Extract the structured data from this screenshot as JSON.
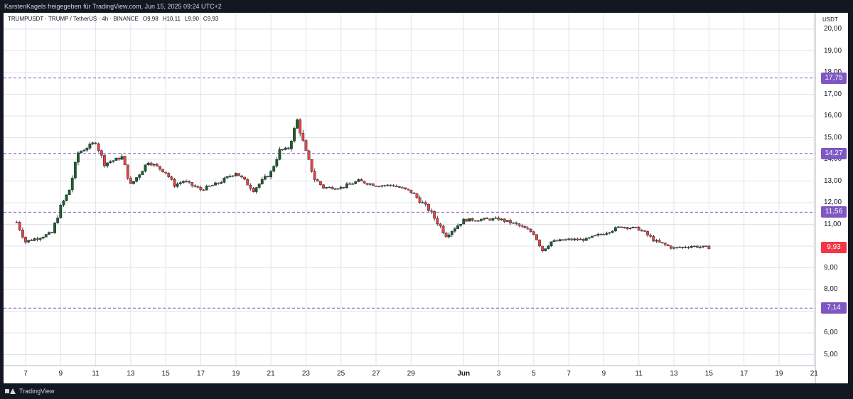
{
  "header": {
    "attribution": "KarstenKagels freigegeben für TradingView.com, Jun 15, 2025 09:24 UTC+2"
  },
  "legend": {
    "symbol": "TRUMPUSDT · TRUMP / TetherUS · 4h · BINANCE",
    "open": "O9,98",
    "high": "H10,11",
    "low": "L9,90",
    "close": "C9,93"
  },
  "axis": {
    "currency": "USDT",
    "y_labels": [
      "20,00",
      "19,00",
      "18,00",
      "17,00",
      "16,00",
      "15,00",
      "14,00",
      "13,00",
      "12,00",
      "11,00",
      "10,00",
      "9,00",
      "8,00",
      "7,00",
      "6,00",
      "5,00"
    ],
    "x_labels": [
      "7",
      "9",
      "11",
      "13",
      "15",
      "17",
      "19",
      "21",
      "23",
      "25",
      "27",
      "29",
      "Jun",
      "3",
      "5",
      "7",
      "9",
      "11",
      "13",
      "15",
      "17",
      "19",
      "21"
    ]
  },
  "levels": [
    {
      "label": "17,75",
      "value": 17.75,
      "color": "#7e57c2"
    },
    {
      "label": "14,27",
      "value": 14.27,
      "color": "#7e57c2"
    },
    {
      "label": "11,56",
      "value": 11.56,
      "color": "#7e57c2"
    },
    {
      "label": "7,14",
      "value": 7.14,
      "color": "#7e57c2"
    }
  ],
  "last_price": {
    "label": "9,93",
    "value": 9.93,
    "color": "#f23645"
  },
  "colors": {
    "up": "#1e5e2b",
    "down": "#e64545",
    "grid": "#e0e3eb",
    "level": "#7e57c2"
  },
  "footer": {
    "brand": "TradingView"
  },
  "chart_data": {
    "type": "candlestick",
    "symbol": "TRUMPUSDT",
    "interval": "4h",
    "ylim": [
      4.5,
      20.5
    ],
    "anchors": [
      {
        "x": "May 6 12:00",
        "price": 11.1
      },
      {
        "x": "May 7",
        "price": 10.2
      },
      {
        "x": "May 8 12:00",
        "price": 10.6
      },
      {
        "x": "May 9",
        "price": 11.8
      },
      {
        "x": "May 9 12:00",
        "price": 12.6
      },
      {
        "x": "May 10",
        "price": 14.3
      },
      {
        "x": "May 11",
        "price": 14.8
      },
      {
        "x": "May 11 12:00",
        "price": 13.8
      },
      {
        "x": "May 12 12:00",
        "price": 14.1
      },
      {
        "x": "May 13",
        "price": 12.8
      },
      {
        "x": "May 14",
        "price": 13.9
      },
      {
        "x": "May 15",
        "price": 13.4
      },
      {
        "x": "May 15 12:00",
        "price": 12.8
      },
      {
        "x": "May 16",
        "price": 13.0
      },
      {
        "x": "May 17",
        "price": 12.6
      },
      {
        "x": "May 18",
        "price": 12.9
      },
      {
        "x": "May 19",
        "price": 13.4
      },
      {
        "x": "May 20",
        "price": 12.6
      },
      {
        "x": "May 21",
        "price": 13.4
      },
      {
        "x": "May 21 12:00",
        "price": 14.4
      },
      {
        "x": "May 22",
        "price": 14.5
      },
      {
        "x": "May 22 12:00",
        "price": 15.8
      },
      {
        "x": "May 23",
        "price": 14.3
      },
      {
        "x": "May 23 12:00",
        "price": 13.1
      },
      {
        "x": "May 24",
        "price": 12.7
      },
      {
        "x": "May 25",
        "price": 12.7
      },
      {
        "x": "May 26",
        "price": 13.0
      },
      {
        "x": "May 27",
        "price": 12.8
      },
      {
        "x": "May 28",
        "price": 12.8
      },
      {
        "x": "May 29",
        "price": 12.5
      },
      {
        "x": "May 30",
        "price": 11.7
      },
      {
        "x": "May 31",
        "price": 10.5
      },
      {
        "x": "Jun 1",
        "price": 11.2
      },
      {
        "x": "Jun 3",
        "price": 11.25
      },
      {
        "x": "Jun 4",
        "price": 11.0
      },
      {
        "x": "Jun 5",
        "price": 10.6
      },
      {
        "x": "Jun 5 12:00",
        "price": 9.8
      },
      {
        "x": "Jun 6",
        "price": 10.2
      },
      {
        "x": "Jun 7",
        "price": 10.3
      },
      {
        "x": "Jun 8",
        "price": 10.3
      },
      {
        "x": "Jun 9",
        "price": 10.6
      },
      {
        "x": "Jun 10",
        "price": 10.9
      },
      {
        "x": "Jun 11",
        "price": 10.8
      },
      {
        "x": "Jun 12",
        "price": 10.2
      },
      {
        "x": "Jun 13",
        "price": 9.9
      },
      {
        "x": "Jun 14",
        "price": 10.0
      },
      {
        "x": "Jun 15",
        "price": 9.93
      }
    ]
  }
}
